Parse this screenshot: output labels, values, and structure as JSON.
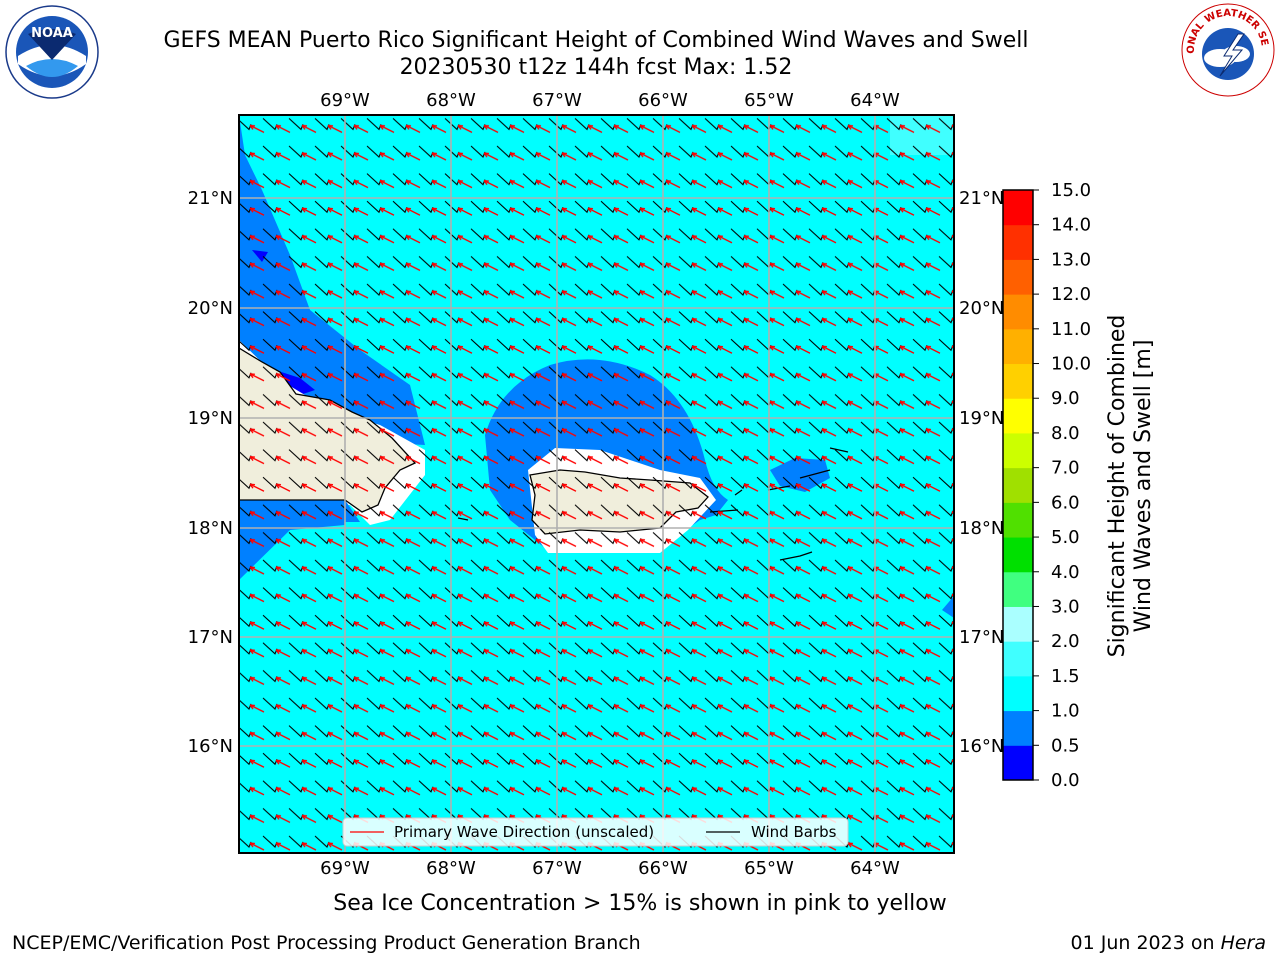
{
  "title": {
    "line1": "GEFS MEAN Puerto Rico Significant Height of Combined Wind Waves and Swell",
    "line2": "20230530 t12z 144h fcst   Max: 1.52"
  },
  "map": {
    "lon_ticks": [
      "69°W",
      "68°W",
      "67°W",
      "66°W",
      "65°W",
      "64°W"
    ],
    "lat_ticks": [
      "21°N",
      "20°N",
      "19°N",
      "18°N",
      "17°N",
      "16°N"
    ],
    "lon_range": [
      -70.0,
      -63.25
    ],
    "lat_range": [
      15.0,
      21.75
    ],
    "colors": {
      "ocean_base": "#00ffff",
      "level_05": "#0080ff",
      "level_0": "#0000ff",
      "land": "#f0eedc",
      "grid": "#b0b0b0"
    }
  },
  "legend": {
    "primary_wave": "Primary Wave Direction (unscaled)",
    "wind_barbs": "Wind Barbs"
  },
  "colorbar": {
    "label_line1": "Significant Height of Combined",
    "label_line2": "Wind Waves and Swell [m]",
    "ticks": [
      "0.0",
      "0.5",
      "1.0",
      "1.5",
      "2.0",
      "3.0",
      "4.0",
      "5.0",
      "6.0",
      "7.0",
      "8.0",
      "9.0",
      "10.0",
      "11.0",
      "12.0",
      "13.0",
      "14.0",
      "15.0"
    ],
    "colors": [
      "#0000ff",
      "#0080ff",
      "#00ffff",
      "#40ffff",
      "#aaffff",
      "#40ff80",
      "#00e000",
      "#50e000",
      "#a0e000",
      "#ccff00",
      "#ffff00",
      "#ffd000",
      "#ffb000",
      "#ff8c00",
      "#ff6000",
      "#ff3000",
      "#ff0000"
    ]
  },
  "sea_ice_note": "Sea Ice Concentration > 15% is shown in pink to yellow",
  "footer": {
    "left": "NCEP/EMC/Verification Post Processing Product Generation Branch",
    "right_date": "01 Jun 2023 on ",
    "right_host": "Hera"
  },
  "logos": {
    "noara_text": "NOAA",
    "nws_text": "NATIONAL WEATHER SERVICE"
  }
}
